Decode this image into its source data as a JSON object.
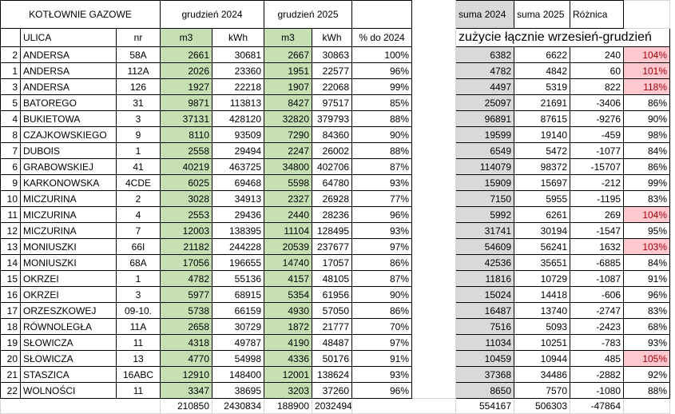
{
  "header": {
    "title": "KOTŁOWNIE GAZOWE",
    "period_2024": "grudzień 2024",
    "period_2025": "grudzień 2025",
    "sum_2024": "suma 2024",
    "sum_2025": "suma 2025",
    "difference": "Różnica"
  },
  "columns": [
    "ULICA",
    "nr",
    "m3",
    "kWh",
    "m3",
    "kWh",
    "% do 2024"
  ],
  "summary_label": "zużycie łącznie wrzesień-grudzień",
  "rows": [
    [
      "2",
      "ANDERSA",
      "58A",
      "2661",
      "30681",
      "2667",
      "30863",
      "100%",
      "6382",
      "6622",
      "240",
      "104%"
    ],
    [
      "1",
      "ANDERSA",
      "112A",
      "2026",
      "23360",
      "1951",
      "22577",
      "96%",
      "4782",
      "4842",
      "60",
      "101%"
    ],
    [
      "3",
      "ANDERSA",
      "126",
      "1927",
      "22218",
      "1907",
      "22068",
      "99%",
      "4497",
      "5319",
      "822",
      "118%"
    ],
    [
      "5",
      "BATOREGO",
      "31",
      "9871",
      "113813",
      "8427",
      "97517",
      "85%",
      "25097",
      "21691",
      "-3406",
      "86%"
    ],
    [
      "4",
      "BUKIETOWA",
      "3",
      "37131",
      "428120",
      "32820",
      "379793",
      "88%",
      "96891",
      "87615",
      "-9276",
      "90%"
    ],
    [
      "8",
      "CZAJKOWSKIEGO",
      "9",
      "8110",
      "93509",
      "7290",
      "84360",
      "90%",
      "19599",
      "19140",
      "-459",
      "98%"
    ],
    [
      "7",
      "DUBOIS",
      "1",
      "2558",
      "29494",
      "2247",
      "26002",
      "88%",
      "6549",
      "5472",
      "-1077",
      "84%"
    ],
    [
      "6",
      "GRABOWSKIEJ",
      "41",
      "40219",
      "463725",
      "34800",
      "402706",
      "87%",
      "114079",
      "98372",
      "-15707",
      "86%"
    ],
    [
      "9",
      "KARKONOWSKA",
      "4CDE",
      "6025",
      "69468",
      "5598",
      "64780",
      "93%",
      "15909",
      "15697",
      "-212",
      "99%"
    ],
    [
      "10",
      "MICZURINA",
      "2",
      "3028",
      "34913",
      "2327",
      "26928",
      "77%",
      "7150",
      "5955",
      "-1195",
      "83%"
    ],
    [
      "11",
      "MICZURINA",
      "4",
      "2553",
      "29436",
      "2440",
      "28236",
      "96%",
      "5992",
      "6261",
      "269",
      "104%"
    ],
    [
      "12",
      "MICZURINA",
      "7",
      "12003",
      "138395",
      "11104",
      "128495",
      "93%",
      "31741",
      "30194",
      "-1547",
      "95%"
    ],
    [
      "13",
      "MONIUSZKI",
      "66I",
      "21182",
      "244228",
      "20539",
      "237677",
      "97%",
      "54609",
      "56241",
      "1632",
      "103%"
    ],
    [
      "14",
      "MONIUSZKI",
      "68A",
      "17056",
      "196655",
      "14740",
      "17057",
      "86%",
      "42536",
      "35651",
      "-6885",
      "84%"
    ],
    [
      "15",
      "OKRZEI",
      "1",
      "4782",
      "55136",
      "4157",
      "48105",
      "87%",
      "11816",
      "10729",
      "-1087",
      "91%"
    ],
    [
      "16",
      "OKRZEI",
      "3",
      "5977",
      "68915",
      "5354",
      "61956",
      "90%",
      "15024",
      "14418",
      "-606",
      "96%"
    ],
    [
      "17",
      "ORZESZKOWEJ",
      "09-10.",
      "5738",
      "66159",
      "4930",
      "57050",
      "86%",
      "16487",
      "13740",
      "-2747",
      "83%"
    ],
    [
      "18",
      "RÓWNOLEGŁA",
      "11A",
      "2658",
      "30729",
      "1872",
      "21777",
      "70%",
      "7516",
      "5093",
      "-2423",
      "68%"
    ],
    [
      "19",
      "SŁOWICZA",
      "11",
      "4318",
      "49787",
      "4190",
      "48487",
      "97%",
      "11034",
      "10251",
      "-783",
      "93%"
    ],
    [
      "20",
      "SŁOWICZA",
      "13",
      "4770",
      "54998",
      "4336",
      "50176",
      "91%",
      "10459",
      "10944",
      "485",
      "105%"
    ],
    [
      "21",
      "STASZICA",
      "16ABC",
      "12910",
      "148400",
      "12001",
      "138624",
      "93%",
      "37368",
      "34486",
      "-2882",
      "92%"
    ],
    [
      "22",
      "WOLNOŚCI",
      "11",
      "3347",
      "38695",
      "3203",
      "37260",
      "96%",
      "8650",
      "7570",
      "-1080",
      "88%"
    ]
  ],
  "totals": [
    "210850",
    "2430834",
    "188900",
    "2032494",
    "554167",
    "506303",
    "-47864"
  ]
}
